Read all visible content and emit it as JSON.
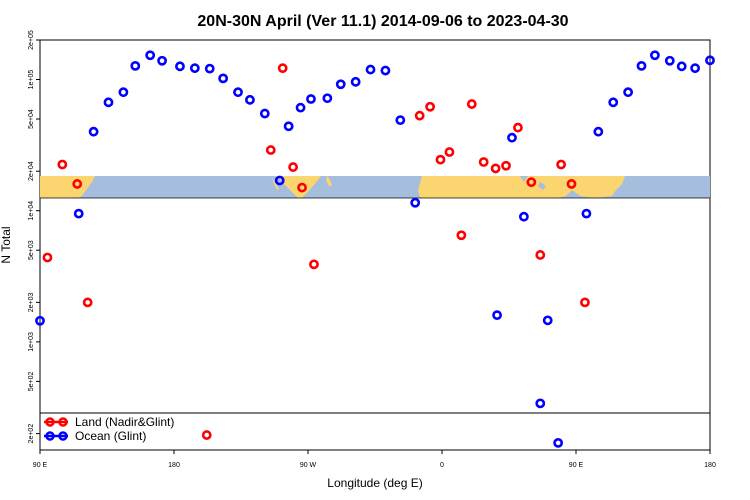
{
  "chart_data": {
    "type": "scatter",
    "title": "20N-30N April (Ver 11.1)   2014-09-06 to 2023-04-30",
    "xlabel": "Longitude (deg E)",
    "ylabel": "N Total",
    "x_scale": "longitude, 90 E to 180 (wraps through 180 / 90 W / 0)",
    "y_scale": "log",
    "xlim": [
      90,
      540
    ],
    "ylim": [
      150,
      200000
    ],
    "x_ticks": [
      {
        "value": 90,
        "label": "90 E"
      },
      {
        "value": 180,
        "label": "180"
      },
      {
        "value": 270,
        "label": "90 W"
      },
      {
        "value": 360,
        "label": "0"
      },
      {
        "value": 450,
        "label": "90 E"
      },
      {
        "value": 540,
        "label": "180"
      }
    ],
    "y_ticks": [
      {
        "value": 200,
        "label": "2e+02"
      },
      {
        "value": 500,
        "label": "5e+02"
      },
      {
        "value": 1000,
        "label": "1e+03"
      },
      {
        "value": 2000,
        "label": "2e+03"
      },
      {
        "value": 5000,
        "label": "5e+03"
      },
      {
        "value": 10000,
        "label": "1e+04"
      },
      {
        "value": 20000,
        "label": "2e+04"
      },
      {
        "value": 50000,
        "label": "5e+04"
      },
      {
        "value": 100000,
        "label": "1e+05"
      },
      {
        "value": 200000,
        "label": "2e+05"
      }
    ],
    "grid": false,
    "legend_position": "bottom-left",
    "series": [
      {
        "name": "Land (Nadir&Glint)",
        "color": "#ff0000",
        "x": [
          95,
          105,
          115,
          122,
          202,
          245,
          253,
          260,
          266,
          274,
          345,
          352,
          359,
          365,
          373,
          380,
          388,
          396,
          403,
          411,
          420,
          426,
          440,
          447,
          456
        ],
        "y": [
          4400,
          22500,
          16000,
          2000,
          195,
          29000,
          122000,
          21500,
          15000,
          3900,
          53000,
          62000,
          24500,
          28000,
          6500,
          65000,
          23500,
          21000,
          22000,
          43000,
          16500,
          4600,
          22500,
          16000,
          2000
        ]
      },
      {
        "name": "Ocean (Glint)",
        "color": "#0000ff",
        "x": [
          90,
          116,
          126,
          136,
          146,
          154,
          164,
          172,
          184,
          194,
          204,
          213,
          223,
          231,
          241,
          251,
          257,
          265,
          272,
          283,
          292,
          302,
          312,
          322,
          332,
          342,
          397,
          407,
          415,
          426,
          431,
          438,
          457,
          465,
          475,
          485,
          494,
          503,
          513,
          521,
          530,
          540
        ],
        "y": [
          1450,
          9500,
          40000,
          67000,
          80000,
          127000,
          153000,
          139000,
          126000,
          122000,
          121000,
          102000,
          80000,
          70000,
          55000,
          17000,
          44000,
          61000,
          71000,
          72000,
          92000,
          96000,
          119000,
          117000,
          49000,
          11500,
          1600,
          36000,
          9000,
          340,
          1460,
          170,
          9500,
          40000,
          67000,
          80000,
          127000,
          153000,
          139000,
          126000,
          122000,
          140000
        ]
      }
    ]
  }
}
